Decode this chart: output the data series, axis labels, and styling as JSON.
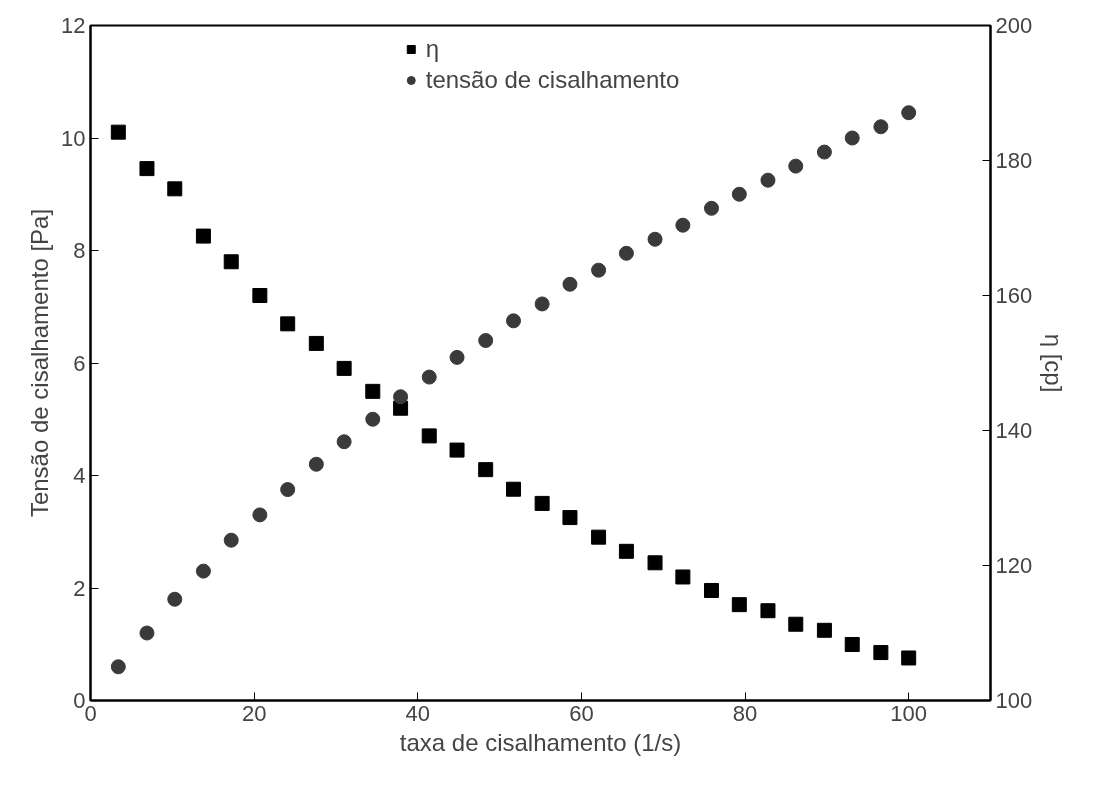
{
  "chart_data": {
    "type": "scatter",
    "xlabel": "taxa de cisalhamento (1/s)",
    "ylabel": "Tensão de cisalhamento [Pa]",
    "y2label": "η [cp]",
    "x": [
      3.4,
      6.9,
      10.3,
      13.8,
      17.2,
      20.7,
      24.1,
      27.6,
      31.0,
      34.5,
      37.9,
      41.4,
      44.8,
      48.3,
      51.7,
      55.2,
      58.6,
      62.1,
      65.5,
      69.0,
      72.4,
      75.9,
      79.3,
      82.8,
      86.2,
      89.7,
      93.1,
      96.6,
      100.0
    ],
    "series": [
      {
        "name": "η",
        "color": "#000000",
        "marker": "square",
        "axis": "y2",
        "values": [
          184.2,
          178.8,
          175.8,
          168.8,
          165,
          160,
          155.8,
          152.9,
          149.2,
          145.8,
          143.3,
          139.2,
          137.1,
          134.2,
          131.3,
          129.2,
          127.1,
          124.2,
          122.1,
          120.4,
          118.3,
          116.3,
          114.2,
          113.3,
          111.3,
          110.4,
          108.3,
          107.1,
          106.3
        ]
      },
      {
        "name": "tensão de cisalhamento",
        "color": "#3a3a3a",
        "marker": "circle",
        "values": [
          0.6,
          1.2,
          1.8,
          2.3,
          2.85,
          3.3,
          3.75,
          4.2,
          4.6,
          5.0,
          5.4,
          5.75,
          6.1,
          6.4,
          6.75,
          7.05,
          7.4,
          7.65,
          7.95,
          8.2,
          8.45,
          8.75,
          9.0,
          9.25,
          9.5,
          9.75,
          10.0,
          10.2,
          10.45
        ]
      }
    ],
    "xlim": [
      0,
      110
    ],
    "xticks": [
      0,
      20,
      40,
      60,
      80,
      100
    ],
    "ylim": [
      0,
      12
    ],
    "yticks": [
      0,
      2,
      4,
      6,
      8,
      10,
      12
    ],
    "y2lim": [
      100,
      200
    ],
    "y2ticks": [
      100,
      120,
      140,
      160,
      180,
      200
    ],
    "legend": "top",
    "grid": false
  }
}
